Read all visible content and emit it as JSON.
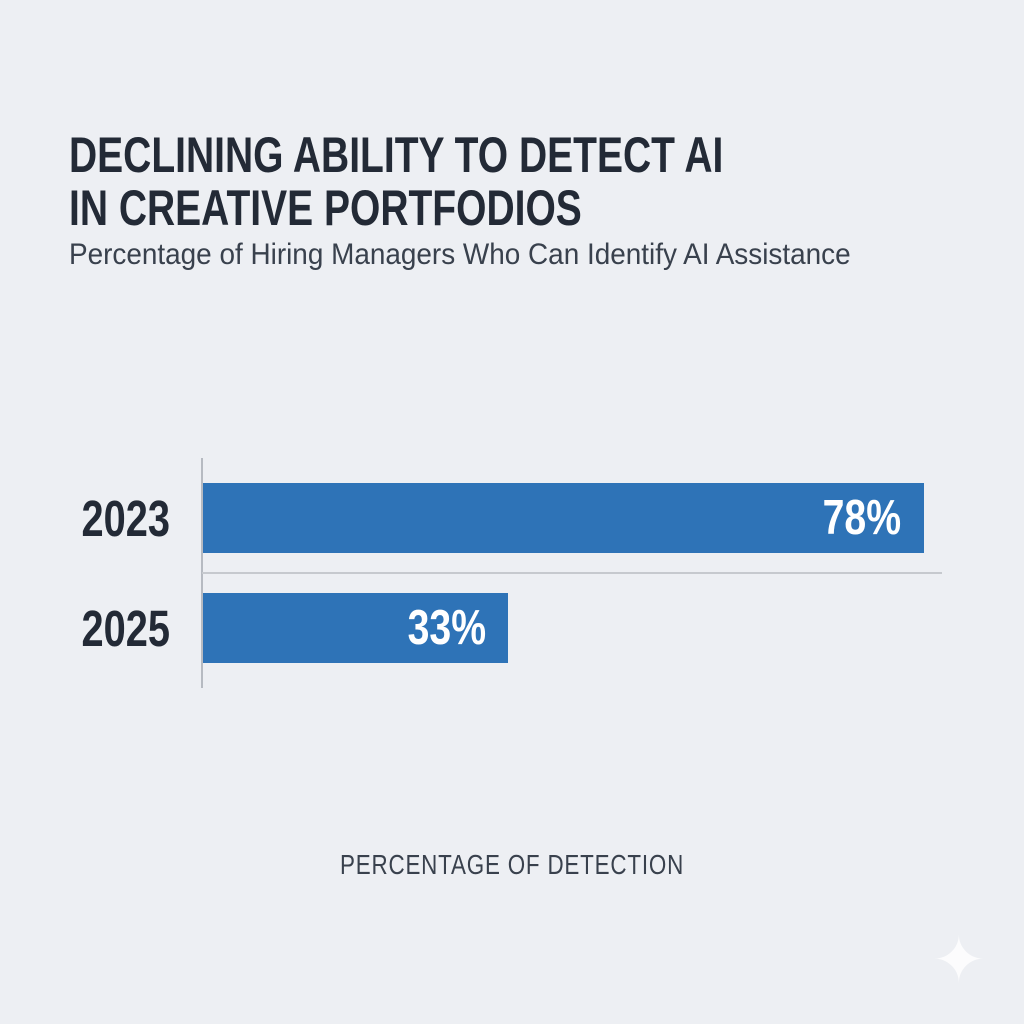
{
  "header": {
    "title_line1": "DECLINING ABILITY TO DETECT AI",
    "title_line2": "IN CREATIVE PORTFODIOS",
    "subtitle": "Percentage of Hiring Managers Who Can Identify AI Assistance"
  },
  "chart_data": {
    "type": "bar",
    "orientation": "horizontal",
    "title": "DECLINING ABILITY TO DETECT AI IN CREATIVE PORTFODIOS",
    "subtitle": "Percentage of Hiring Managers Who Can Identify AI Assistance",
    "categories": [
      "2023",
      "2025"
    ],
    "values": [
      78,
      33
    ],
    "value_labels": [
      "78%",
      "33%"
    ],
    "xlabel": "PERCENTAGE OF DETECTION",
    "ylabel": "",
    "xlim": [
      0,
      80
    ],
    "grid": false,
    "legend": "none",
    "value_label_position": "inside-right"
  },
  "colors": {
    "background": "#edeff3",
    "bar": "#2e73b7",
    "title_text": "#232a36",
    "subtitle_text": "#39414d",
    "value_text": "#ffffff",
    "axis_line": "#b6bac1",
    "separator_line": "#c6c9ce",
    "sparkle": "#ffffff"
  },
  "icons": {
    "sparkle": "✦"
  }
}
